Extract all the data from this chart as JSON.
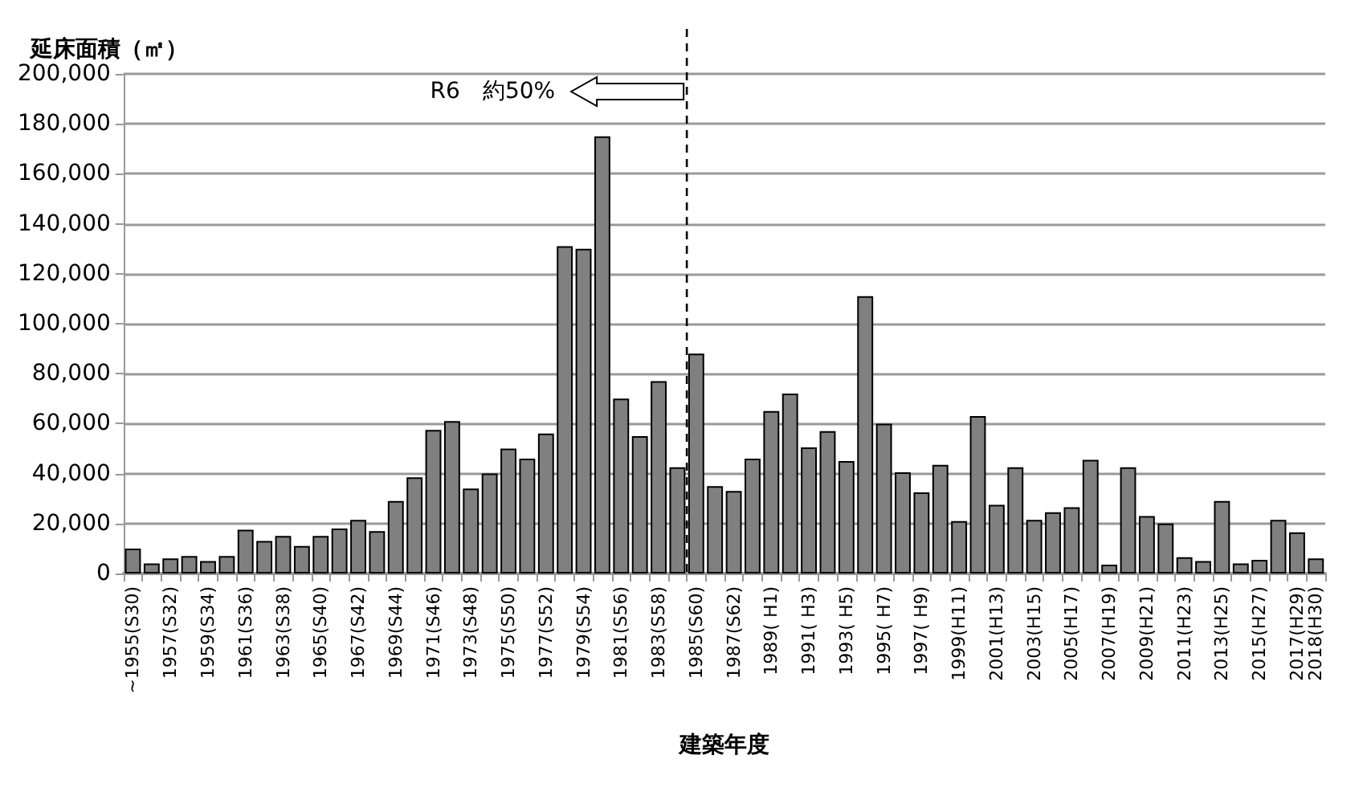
{
  "chart_data": {
    "type": "bar",
    "ylabel": "延床面積（㎡）",
    "xlabel": "建築年度",
    "categories": [
      "~1955(S30)",
      null,
      "1957(S32)",
      null,
      "1959(S34)",
      null,
      "1961(S36)",
      null,
      "1963(S38)",
      null,
      "1965(S40)",
      null,
      "1967(S42)",
      null,
      "1969(S44)",
      null,
      "1971(S46)",
      null,
      "1973(S48)",
      null,
      "1975(S50)",
      null,
      "1977(S52)",
      null,
      "1979(S54)",
      null,
      "1981(S56)",
      null,
      "1983(S58)",
      null,
      "1985(S60)",
      null,
      "1987(S62)",
      null,
      "1989( H1)",
      null,
      "1991( H3)",
      null,
      "1993( H5)",
      null,
      "1995( H7)",
      null,
      "1997( H9)",
      null,
      "1999(H11)",
      null,
      "2001(H13)",
      null,
      "2003(H15)",
      null,
      "2005(H17)",
      null,
      "2007(H19)",
      null,
      "2009(H21)",
      null,
      "2011(H23)",
      null,
      "2013(H25)",
      null,
      "2015(H27)",
      null,
      "2017(H29)",
      "2018(H30)"
    ],
    "values": [
      10000,
      4000,
      6000,
      7000,
      5000,
      7000,
      17500,
      13000,
      15000,
      11000,
      15000,
      18000,
      21500,
      17000,
      29000,
      38500,
      57500,
      61000,
      34000,
      40000,
      50000,
      46000,
      56000,
      131000,
      130000,
      175000,
      70000,
      55000,
      77000,
      42500,
      88000,
      35000,
      33000,
      46000,
      65000,
      72000,
      50500,
      57000,
      45000,
      111000,
      60000,
      40500,
      32500,
      43500,
      21000,
      63000,
      27500,
      42500,
      21500,
      24500,
      26500,
      45500,
      3500,
      42500,
      23000,
      20000,
      6500,
      5000,
      29000,
      4000,
      5500,
      21500,
      16500,
      6000
    ],
    "color": "#808080",
    "ylim": [
      0,
      200000
    ],
    "yticks": [
      0,
      {
        "value": 20000,
        "label": "20,000"
      },
      {
        "value": 40000,
        "label": "40,000"
      },
      {
        "value": 60000,
        "label": "60,000"
      },
      {
        "value": 80000,
        "label": "80,000"
      },
      {
        "value": 100000,
        "label": "100,000"
      },
      {
        "value": 120000,
        "label": "120,000"
      },
      {
        "value": 140000,
        "label": "140,000"
      },
      {
        "value": 160000,
        "label": "160,000"
      },
      {
        "value": 180000,
        "label": "180,000"
      },
      {
        "value": 200000,
        "label": "200,000"
      }
    ],
    "grid": "y",
    "ref_lines": [
      {
        "axis": "x",
        "value": "1985(S60)",
        "label": "R6　約50%",
        "color": "#000000",
        "line_style": "dashed"
      }
    ]
  }
}
